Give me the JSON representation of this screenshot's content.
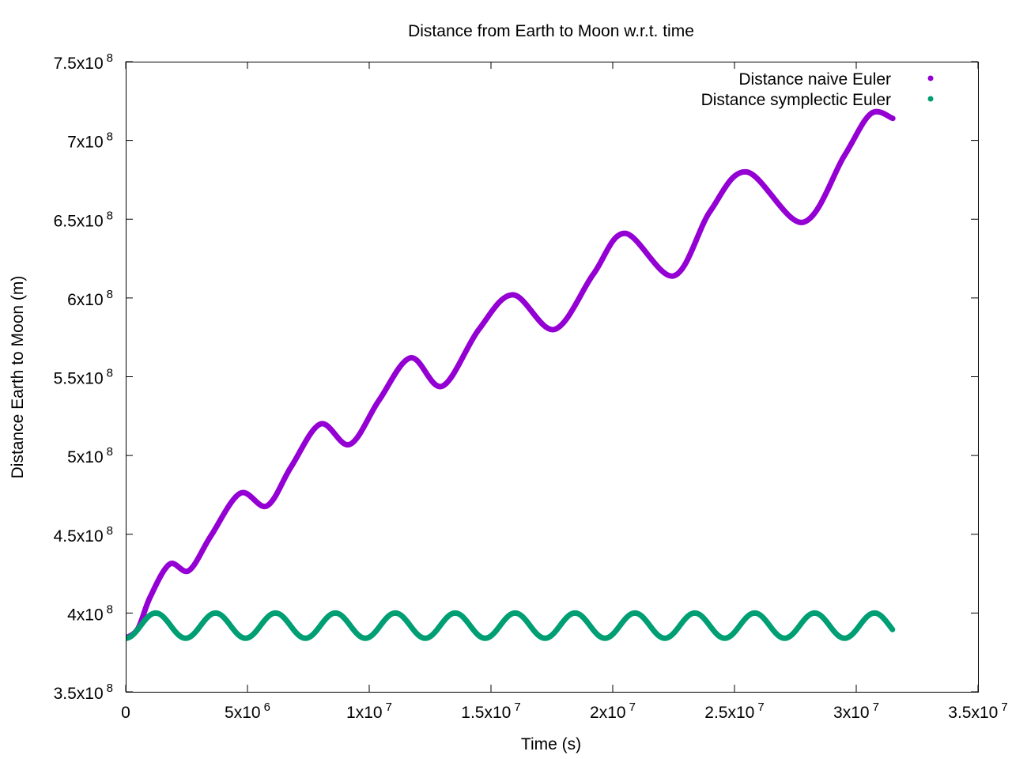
{
  "chart_data": {
    "type": "scatter",
    "title": "Distance from Earth to Moon w.r.t. time",
    "xlabel": "Time (s)",
    "ylabel": "Distance Earth to Moon (m)",
    "xlim": [
      0,
      35000000
    ],
    "ylim": [
      350000000,
      750000000
    ],
    "x_ticks": [
      {
        "value": 0,
        "mant": "0",
        "exp": ""
      },
      {
        "value": 5000000,
        "mant": "5x10",
        "exp": "6"
      },
      {
        "value": 10000000,
        "mant": "1x10",
        "exp": "7"
      },
      {
        "value": 15000000,
        "mant": "1.5x10",
        "exp": "7"
      },
      {
        "value": 20000000,
        "mant": "2x10",
        "exp": "7"
      },
      {
        "value": 25000000,
        "mant": "2.5x10",
        "exp": "7"
      },
      {
        "value": 30000000,
        "mant": "3x10",
        "exp": "7"
      },
      {
        "value": 35000000,
        "mant": "3.5x10",
        "exp": "7"
      }
    ],
    "y_ticks": [
      {
        "value": 350000000,
        "mant": "3.5x10",
        "exp": "8"
      },
      {
        "value": 400000000,
        "mant": "4x10",
        "exp": "8"
      },
      {
        "value": 450000000,
        "mant": "4.5x10",
        "exp": "8"
      },
      {
        "value": 500000000,
        "mant": "5x10",
        "exp": "8"
      },
      {
        "value": 550000000,
        "mant": "5.5x10",
        "exp": "8"
      },
      {
        "value": 600000000,
        "mant": "6x10",
        "exp": "8"
      },
      {
        "value": 650000000,
        "mant": "6.5x10",
        "exp": "8"
      },
      {
        "value": 700000000,
        "mant": "7x10",
        "exp": "8"
      },
      {
        "value": 750000000,
        "mant": "7.5x10",
        "exp": "8"
      }
    ],
    "grid": false,
    "legend_position": "top-right",
    "series": [
      {
        "name": "Distance naive Euler",
        "color": "#9400d3",
        "points": [
          [
            0,
            384000000
          ],
          [
            500000,
            390000000
          ],
          [
            1000000,
            410000000
          ],
          [
            1800000,
            431000000
          ],
          [
            2600000,
            427000000
          ],
          [
            3500000,
            449000000
          ],
          [
            4700000,
            476000000
          ],
          [
            5800000,
            468000000
          ],
          [
            6800000,
            493000000
          ],
          [
            8000000,
            520000000
          ],
          [
            9200000,
            507000000
          ],
          [
            10400000,
            535000000
          ],
          [
            11700000,
            562000000
          ],
          [
            13000000,
            544000000
          ],
          [
            14500000,
            580000000
          ],
          [
            15900000,
            602000000
          ],
          [
            17600000,
            580000000
          ],
          [
            19200000,
            615000000
          ],
          [
            20500000,
            641000000
          ],
          [
            22500000,
            614000000
          ],
          [
            24000000,
            655000000
          ],
          [
            25500000,
            680000000
          ],
          [
            27800000,
            648000000
          ],
          [
            29500000,
            690000000
          ],
          [
            30600000,
            717000000
          ],
          [
            31500000,
            714000000
          ]
        ]
      },
      {
        "name": "Distance symplectic Euler",
        "color": "#009e73",
        "periodic": {
          "mean": 392000000,
          "amplitude": 8000000,
          "period": 2460000,
          "x_start": 0,
          "x_end": 31500000
        }
      }
    ]
  }
}
